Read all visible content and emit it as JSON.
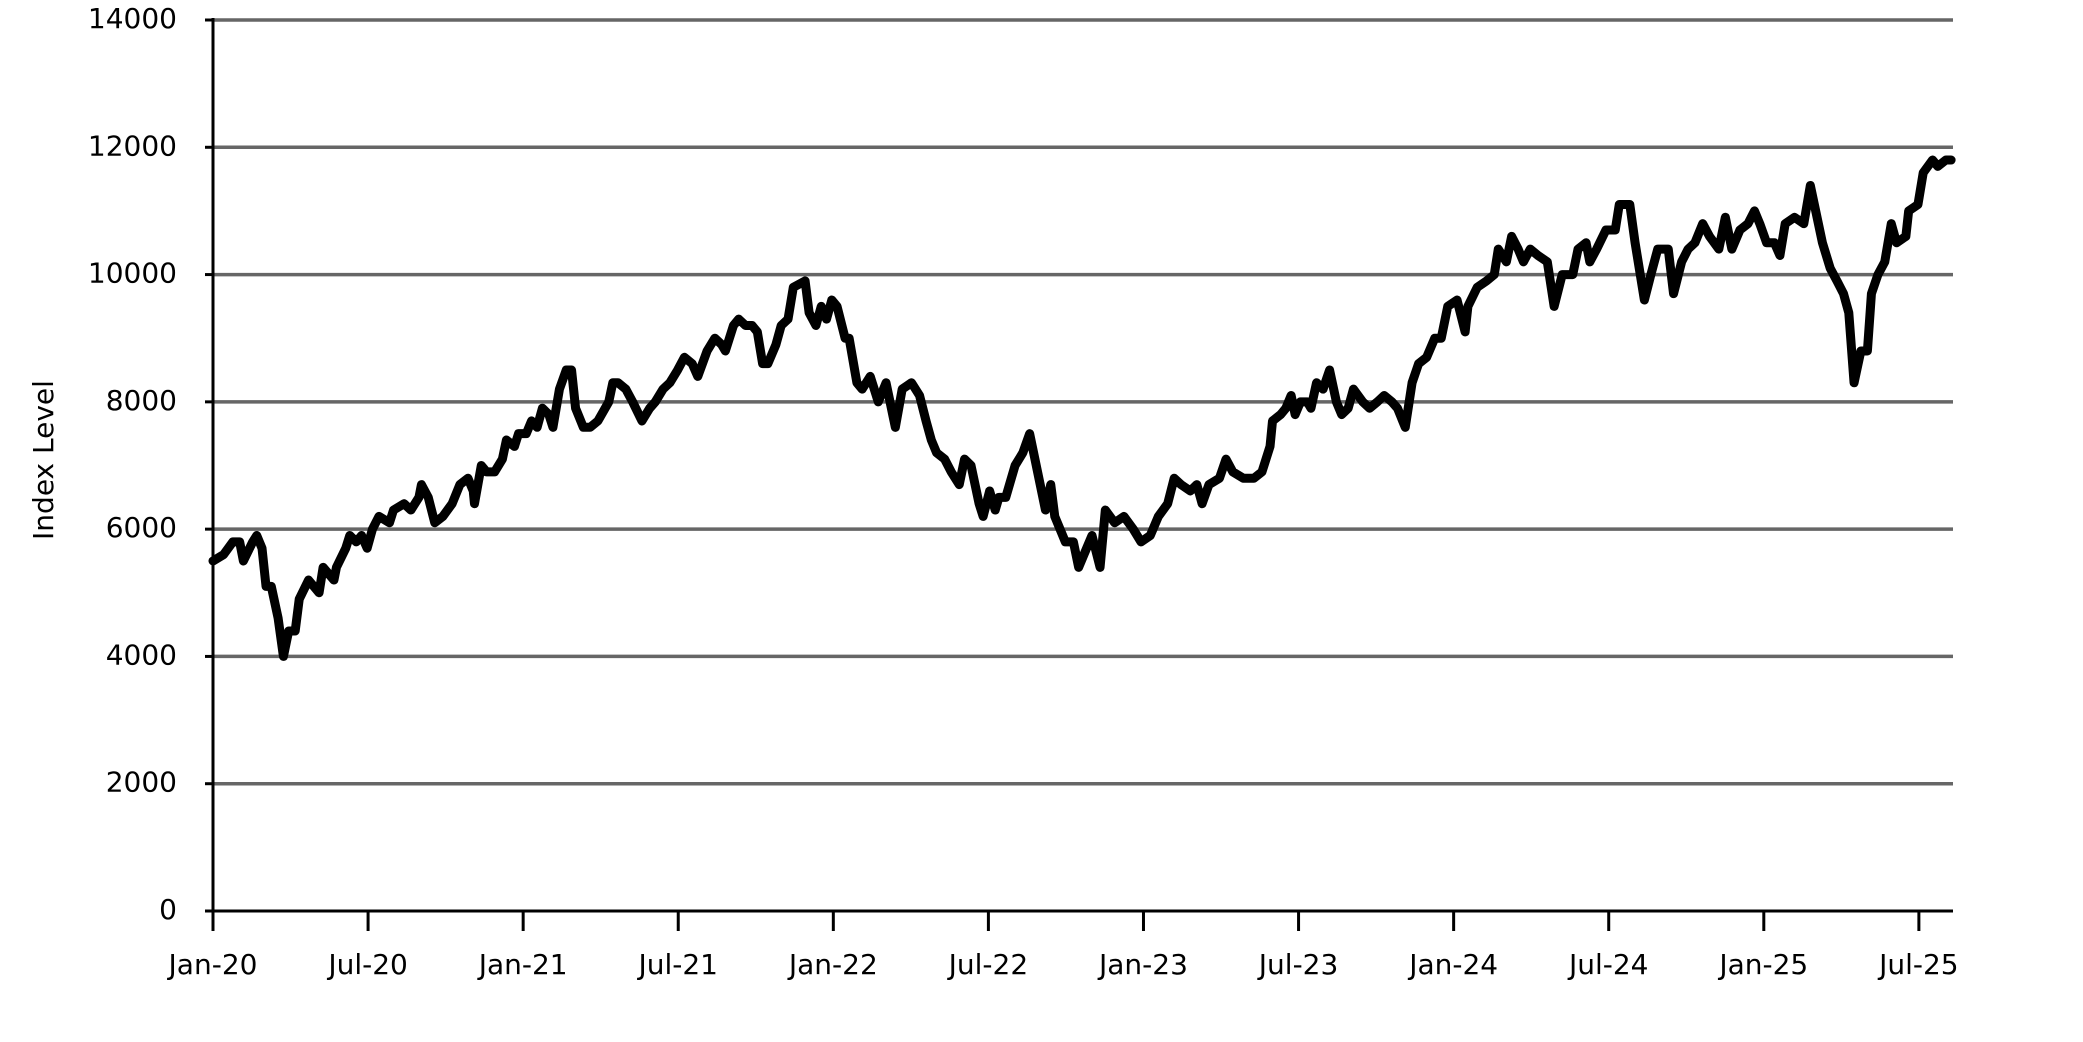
{
  "chart_data": {
    "type": "line",
    "y_label": "Index Level",
    "color": "#000000",
    "grid": true,
    "xlim": [
      2020,
      2025.61
    ],
    "ylim": [
      0,
      14000
    ],
    "yticks": [
      0,
      2000,
      4000,
      6000,
      8000,
      10000,
      12000,
      14000
    ],
    "xticks": [
      {
        "value": 2020.0,
        "label": "Jan-20"
      },
      {
        "value": 2020.5,
        "label": "Jul-20"
      },
      {
        "value": 2021.0,
        "label": "Jan-21"
      },
      {
        "value": 2021.5,
        "label": "Jul-21"
      },
      {
        "value": 2022.0,
        "label": "Jan-22"
      },
      {
        "value": 2022.5,
        "label": "Jul-22"
      },
      {
        "value": 2023.0,
        "label": "Jan-23"
      },
      {
        "value": 2023.5,
        "label": "Jul-23"
      },
      {
        "value": 2024.0,
        "label": "Jan-24"
      },
      {
        "value": 2024.5,
        "label": "Jul-24"
      },
      {
        "value": 2025.0,
        "label": "Jan-25"
      },
      {
        "value": 2025.5,
        "label": "Jul-25"
      }
    ],
    "x": [
      2020.0,
      2020.034,
      2020.064,
      2020.086,
      2020.098,
      2020.128,
      2020.141,
      2020.158,
      2020.171,
      2020.188,
      2020.21,
      2020.227,
      2020.244,
      2020.265,
      2020.278,
      2020.308,
      2020.342,
      2020.355,
      2020.39,
      2020.398,
      2020.428,
      2020.441,
      2020.462,
      2020.479,
      2020.497,
      2020.514,
      2020.535,
      2020.569,
      2020.582,
      2020.616,
      2020.638,
      2020.664,
      2020.672,
      2020.694,
      2020.715,
      2020.741,
      2020.771,
      2020.796,
      2020.822,
      2020.839,
      2020.843,
      2020.865,
      2020.882,
      2020.908,
      2020.933,
      2020.946,
      2020.972,
      2020.985,
      2021.01,
      2021.027,
      2021.045,
      2021.062,
      2021.083,
      2021.096,
      2021.117,
      2021.139,
      2021.156,
      2021.169,
      2021.194,
      2021.216,
      2021.241,
      2021.276,
      2021.289,
      2021.306,
      2021.331,
      2021.353,
      2021.383,
      2021.408,
      2021.426,
      2021.451,
      2021.473,
      2021.498,
      2021.52,
      2021.545,
      2021.563,
      2021.593,
      2021.618,
      2021.64,
      2021.652,
      2021.678,
      2021.695,
      2021.717,
      2021.738,
      2021.755,
      2021.772,
      2021.789,
      2021.815,
      2021.832,
      2021.854,
      2021.871,
      2021.909,
      2021.922,
      2021.944,
      2021.961,
      2021.978,
      2021.995,
      2022.012,
      2022.038,
      2022.051,
      2022.076,
      2022.093,
      2022.119,
      2022.145,
      2022.17,
      2022.2,
      2022.222,
      2022.252,
      2022.278,
      2022.299,
      2022.316,
      2022.333,
      2022.359,
      2022.38,
      2022.406,
      2022.423,
      2022.444,
      2022.47,
      2022.483,
      2022.504,
      2022.522,
      2022.534,
      2022.556,
      2022.586,
      2022.611,
      2022.633,
      2022.65,
      2022.667,
      2022.684,
      2022.701,
      2022.714,
      2022.748,
      2022.774,
      2022.791,
      2022.808,
      2022.834,
      2022.86,
      2022.877,
      2022.907,
      2022.937,
      2022.967,
      2022.992,
      2023.022,
      2023.048,
      2023.078,
      2023.099,
      2023.121,
      2023.151,
      2023.172,
      2023.189,
      2023.211,
      2023.245,
      2023.266,
      2023.288,
      2023.322,
      2023.356,
      2023.382,
      2023.408,
      2023.416,
      2023.442,
      2023.459,
      2023.476,
      2023.489,
      2023.506,
      2023.528,
      2023.54,
      2023.558,
      2023.579,
      2023.6,
      2023.622,
      2023.639,
      2023.66,
      2023.677,
      2023.707,
      2023.729,
      2023.754,
      2023.776,
      2023.801,
      2023.819,
      2023.844,
      2023.866,
      2023.887,
      2023.913,
      2023.939,
      2023.96,
      2023.981,
      2024.011,
      2024.037,
      2024.046,
      2024.076,
      2024.106,
      2024.131,
      2024.144,
      2024.17,
      2024.187,
      2024.208,
      2024.225,
      2024.247,
      2024.272,
      2024.302,
      2024.324,
      2024.35,
      2024.384,
      2024.401,
      2024.427,
      2024.439,
      2024.461,
      2024.491,
      2024.521,
      2024.534,
      2024.568,
      2024.585,
      2024.615,
      2024.636,
      2024.658,
      2024.692,
      2024.709,
      2024.735,
      2024.756,
      2024.778,
      2024.803,
      2024.825,
      2024.855,
      2024.876,
      2024.897,
      2024.923,
      2024.949,
      2024.97,
      2024.987,
      2025.009,
      2025.034,
      2025.052,
      2025.069,
      2025.099,
      2025.129,
      2025.15,
      2025.163,
      2025.189,
      2025.214,
      2025.236,
      2025.257,
      2025.274,
      2025.291,
      2025.313,
      2025.334,
      2025.347,
      2025.368,
      2025.39,
      2025.411,
      2025.428,
      2025.458,
      2025.467,
      2025.497,
      2025.514,
      2025.544,
      2025.561,
      2025.587,
      2025.604
    ],
    "values": [
      5500,
      5600,
      5800,
      5800,
      5500,
      5800,
      5900,
      5700,
      5100,
      5100,
      4600,
      4000,
      4400,
      4400,
      4900,
      5200,
      5000,
      5400,
      5200,
      5400,
      5700,
      5900,
      5800,
      5900,
      5700,
      6000,
      6200,
      6100,
      6300,
      6400,
      6300,
      6500,
      6700,
      6500,
      6100,
      6200,
      6400,
      6700,
      6800,
      6600,
      6400,
      7000,
      6900,
      6900,
      7100,
      7400,
      7300,
      7500,
      7500,
      7700,
      7600,
      7900,
      7800,
      7600,
      8200,
      8500,
      8500,
      7900,
      7600,
      7600,
      7700,
      8000,
      8300,
      8300,
      8200,
      8000,
      7700,
      7900,
      8000,
      8200,
      8300,
      8500,
      8700,
      8600,
      8400,
      8800,
      9000,
      8900,
      8800,
      9200,
      9300,
      9200,
      9200,
      9100,
      8600,
      8600,
      8900,
      9200,
      9300,
      9800,
      9900,
      9400,
      9200,
      9500,
      9300,
      9600,
      9500,
      9000,
      9000,
      8300,
      8200,
      8400,
      8000,
      8300,
      7600,
      8200,
      8300,
      8100,
      7700,
      7400,
      7200,
      7100,
      6900,
      6700,
      7100,
      7000,
      6400,
      6200,
      6600,
      6300,
      6500,
      6500,
      7000,
      7200,
      7500,
      7100,
      6700,
      6300,
      6700,
      6200,
      5800,
      5800,
      5400,
      5600,
      5900,
      5400,
      6300,
      6100,
      6200,
      6000,
      5800,
      5900,
      6200,
      6400,
      6800,
      6700,
      6600,
      6700,
      6400,
      6700,
      6800,
      7100,
      6900,
      6800,
      6800,
      6900,
      7300,
      7700,
      7800,
      7900,
      8100,
      7800,
      8000,
      8000,
      7900,
      8300,
      8200,
      8500,
      8000,
      7800,
      7900,
      8200,
      8000,
      7900,
      8000,
      8100,
      8000,
      7900,
      7600,
      8300,
      8600,
      8700,
      9000,
      9000,
      9500,
      9600,
      9100,
      9500,
      9800,
      9900,
      10000,
      10400,
      10200,
      10600,
      10400,
      10200,
      10400,
      10300,
      10200,
      9500,
      10000,
      10000,
      10400,
      10500,
      10200,
      10400,
      10700,
      10700,
      11100,
      11100,
      10500,
      9600,
      10000,
      10400,
      10400,
      9700,
      10200,
      10400,
      10500,
      10800,
      10600,
      10400,
      10900,
      10400,
      10700,
      10800,
      11000,
      10800,
      10500,
      10500,
      10300,
      10800,
      10900,
      10800,
      11400,
      11100,
      10500,
      10100,
      9900,
      9700,
      9400,
      8300,
      8800,
      8800,
      9700,
      10000,
      10200,
      10800,
      10500,
      10600,
      11000,
      11100,
      11600,
      11800,
      11700,
      11800,
      11800
    ]
  }
}
